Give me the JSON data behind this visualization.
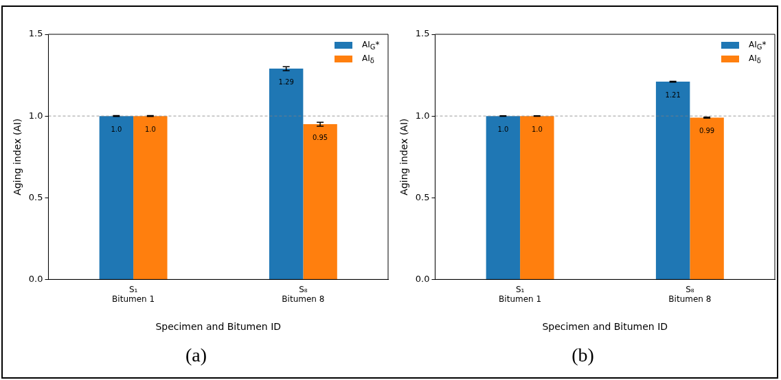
{
  "chart_data": [
    {
      "type": "bar",
      "title": "(a)",
      "xlabel": "Specimen and Bitumen ID",
      "ylabel": "Aging index (AI)",
      "categories": [
        "S₁\nBitumen 1",
        "S₈\nBitumen 8"
      ],
      "series": [
        {
          "name": "AI$_{G}$*",
          "color": "#1f77b4",
          "values": [
            1.0,
            1.29
          ],
          "errors": [
            0.003,
            0.012
          ],
          "value_labels": [
            "1.0",
            "1.29"
          ]
        },
        {
          "name": "AI$_{δ}$",
          "color": "#ff7f0e",
          "values": [
            1.0,
            0.95
          ],
          "errors": [
            0.003,
            0.012
          ],
          "value_labels": [
            "1.0",
            "0.95"
          ]
        }
      ],
      "ylim": [
        0,
        1.5
      ],
      "yticks": [
        {
          "value": 0,
          "label": "0.0"
        },
        {
          "value": 0.5,
          "label": "0.5"
        },
        {
          "value": 1,
          "label": "1.0"
        },
        {
          "value": 1.5,
          "label": "1.5"
        }
      ],
      "ref_lines": [
        {
          "axis": "y",
          "value": 1.0,
          "color": "#808080",
          "line_style": "dashed"
        }
      ],
      "legend": "top right"
    },
    {
      "type": "bar",
      "title": "(b)",
      "xlabel": "Specimen and Bitumen ID",
      "ylabel": "Aging index (AI)",
      "categories": [
        "S₁\nBitumen 1",
        "S₈\nBitumen 8"
      ],
      "series": [
        {
          "name": "AI$_{G}$*",
          "color": "#1f77b4",
          "values": [
            1.0,
            1.21
          ],
          "errors": [
            0.002,
            0.003
          ],
          "value_labels": [
            "1.0",
            "1.21"
          ]
        },
        {
          "name": "AI$_{δ}$",
          "color": "#ff7f0e",
          "values": [
            1.0,
            0.99
          ],
          "errors": [
            0.002,
            0.003
          ],
          "value_labels": [
            "1.0",
            "0.99"
          ]
        }
      ],
      "ylim": [
        0,
        1.5
      ],
      "yticks": [
        {
          "value": 0,
          "label": "0.0"
        },
        {
          "value": 0.5,
          "label": "0.5"
        },
        {
          "value": 1,
          "label": "1.0"
        },
        {
          "value": 1.5,
          "label": "1.5"
        }
      ],
      "ref_lines": [
        {
          "axis": "y",
          "value": 1.0,
          "color": "#808080",
          "line_style": "dashed"
        }
      ],
      "legend": "top right"
    }
  ]
}
